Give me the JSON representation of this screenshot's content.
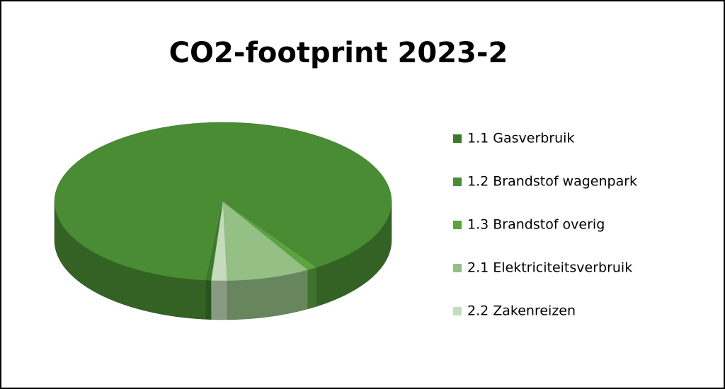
{
  "chart_data": {
    "type": "pie",
    "title": "CO2-footprint 2023-2",
    "categories": [
      "1.1 Gasverbruik",
      "1.2 Brandstof wagenpark",
      "1.3 Brandstof overig",
      "2.1 Elektriciteitsverbruik",
      "2.2 Zakenreizen"
    ],
    "values": [
      0.5,
      89,
      1,
      8,
      1.5
    ],
    "colors": [
      "#3b7a2a",
      "#4a8c33",
      "#5aa53e",
      "#94c085",
      "#c4dcbb"
    ],
    "legend": "right"
  }
}
